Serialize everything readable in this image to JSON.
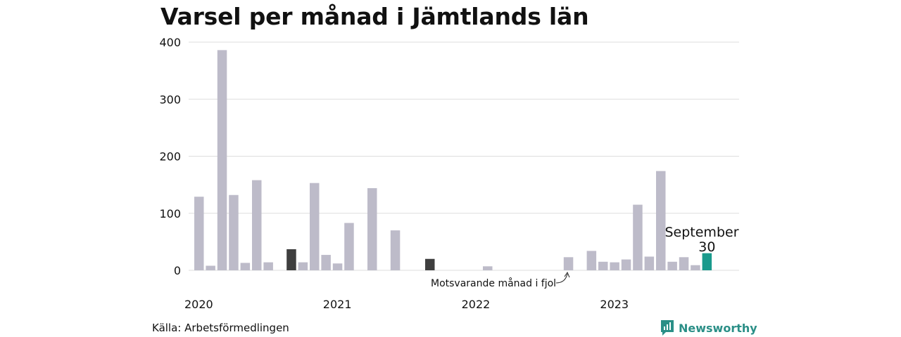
{
  "title": "Varsel per månad i Jämtlands län",
  "source": "Källa: Arbetsförmedlingen",
  "brand": "Newsworthy",
  "colors": {
    "bar": "#bdbbc9",
    "previous_year": "#3f3f3f",
    "current": "#1a9a8c",
    "brand": "#2b8f87",
    "grid": "#dddddd"
  },
  "chart_data": {
    "type": "bar",
    "title": "Varsel per månad i Jämtlands län",
    "xlabel": "",
    "ylabel": "",
    "ylim": [
      0,
      400
    ],
    "yticks": [
      0,
      100,
      200,
      300,
      400
    ],
    "year_labels": [
      "2020",
      "2021",
      "2022",
      "2023"
    ],
    "categories": [
      "2020-01",
      "2020-02",
      "2020-03",
      "2020-04",
      "2020-05",
      "2020-06",
      "2020-07",
      "2020-08",
      "2020-09",
      "2020-10",
      "2020-11",
      "2020-12",
      "2021-01",
      "2021-02",
      "2021-03",
      "2021-04",
      "2021-05",
      "2021-06",
      "2021-07",
      "2021-08",
      "2021-09",
      "2021-10",
      "2021-11",
      "2021-12",
      "2022-01",
      "2022-02",
      "2022-03",
      "2022-04",
      "2022-05",
      "2022-06",
      "2022-07",
      "2022-08",
      "2022-09",
      "2022-10",
      "2022-11",
      "2022-12",
      "2023-01",
      "2023-02",
      "2023-03",
      "2023-04",
      "2023-05",
      "2023-06",
      "2023-07",
      "2023-08",
      "2023-09"
    ],
    "values": [
      129,
      8,
      386,
      132,
      13,
      158,
      14,
      0,
      37,
      14,
      153,
      27,
      12,
      83,
      0,
      144,
      0,
      70,
      0,
      0,
      20,
      0,
      0,
      0,
      0,
      7,
      0,
      0,
      0,
      0,
      0,
      0,
      23,
      0,
      34,
      15,
      14,
      19,
      115,
      24,
      174,
      15,
      23,
      9,
      30
    ],
    "highlight": {
      "index": 44,
      "label": "September",
      "value_label": "30"
    },
    "previous_year_indices": [
      8,
      20
    ],
    "annotation": "Motsvarande månad i fjol"
  }
}
